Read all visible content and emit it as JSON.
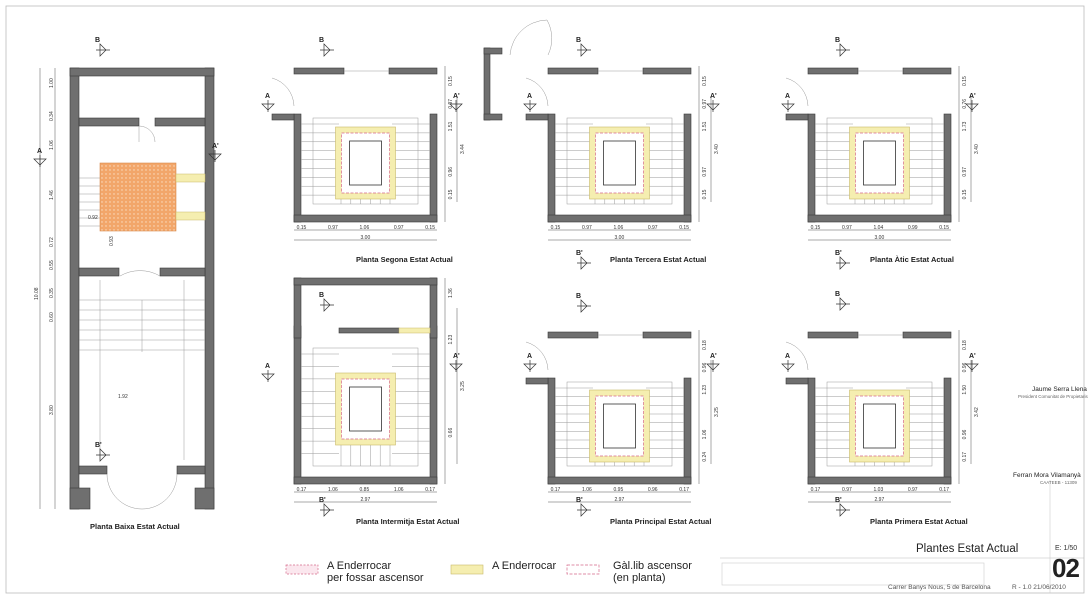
{
  "plans": {
    "ground": {
      "caption": "Planta Baixa Estat Actual",
      "dims_vertical": [
        "1.00",
        "0.34",
        "1.06",
        "1.46",
        "0.72",
        "0.55",
        "0.35",
        "0.60",
        "3.80"
      ],
      "dim_total": "10.08",
      "dim_092": "0.92",
      "dim_093": "0.93",
      "dim_192": "1.92"
    },
    "segona": {
      "caption": "Planta Segona Estat Actual",
      "dims": [
        "0.15",
        "0.97",
        "1.06",
        "0.97",
        "0.15"
      ],
      "total": "3.00",
      "v": [
        "0.15",
        "0.97",
        "1.51",
        "3.44",
        "0.96",
        "0.15"
      ]
    },
    "tercera": {
      "caption": "Planta Tercera Estat Actual",
      "dims": [
        "0.15",
        "0.97",
        "1.06",
        "0.97",
        "0.15"
      ],
      "total": "3.00",
      "v": [
        "0.15",
        "0.97",
        "1.51",
        "3.40",
        "0.97",
        "0.15"
      ]
    },
    "atic": {
      "caption": "Planta Àtic Estat Actual",
      "dims": [
        "0.15",
        "0.97",
        "1.04",
        "0.99",
        "0.15"
      ],
      "total": "3.00",
      "v": [
        "0.15",
        "0.76",
        "1.73",
        "3.40",
        "0.97",
        "0.15"
      ]
    },
    "intermitja": {
      "caption": "Planta Intermitja Estat Actual",
      "dims": [
        "0.17",
        "1.06",
        "0.85",
        "1.06",
        "0.17"
      ],
      "total": "2.97",
      "v": [
        "1.36",
        "1.23",
        "3.25",
        "0.66"
      ]
    },
    "principal": {
      "caption": "Planta Principal Estat Actual",
      "dims": [
        "0.17",
        "1.06",
        "0.95",
        "0.96",
        "0.17"
      ],
      "total": "2.97",
      "v": [
        "0.18",
        "0.96",
        "1.23",
        "3.25",
        "1.06",
        "0.24"
      ]
    },
    "primera": {
      "caption": "Planta Primera Estat Actual",
      "dims": [
        "0.17",
        "0.97",
        "1.03",
        "0.97",
        "0.17"
      ],
      "total": "2.97",
      "v": [
        "0.18",
        "0.96",
        "1.50",
        "3.42",
        "0.96",
        "0.17"
      ]
    }
  },
  "section_marks": {
    "a": "A",
    "a_prime": "A'",
    "b": "B",
    "b_prime": "B'"
  },
  "signatures": {
    "person1_name": "Jaume Serra Llena",
    "person1_role": "President Comunitat de Propietaris",
    "person2_name": "Ferran Mora Vilamanyà",
    "person2_role": "CAATEEB - 11309"
  },
  "legend": {
    "item1_line1": "A Enderrocar",
    "item1_line2": "per fossar ascensor",
    "item2": "A Enderrocar",
    "item3_line1": "Gàl.lib ascensor",
    "item3_line2": "(en planta)"
  },
  "title_block": {
    "sheet_title": "Plantes Estat Actual",
    "scale": "E: 1/50",
    "sheet_number": "02",
    "address": "Carrer Banys Nous, 5 de Barcelona",
    "revision_date": "R - 1.0  21/06/2010"
  },
  "colors": {
    "wall": "#6f6f6f",
    "demolish_orange": "#f2a66a",
    "demolish_yellow": "#f5eeb0",
    "lift_outline": "#d56a8a"
  }
}
